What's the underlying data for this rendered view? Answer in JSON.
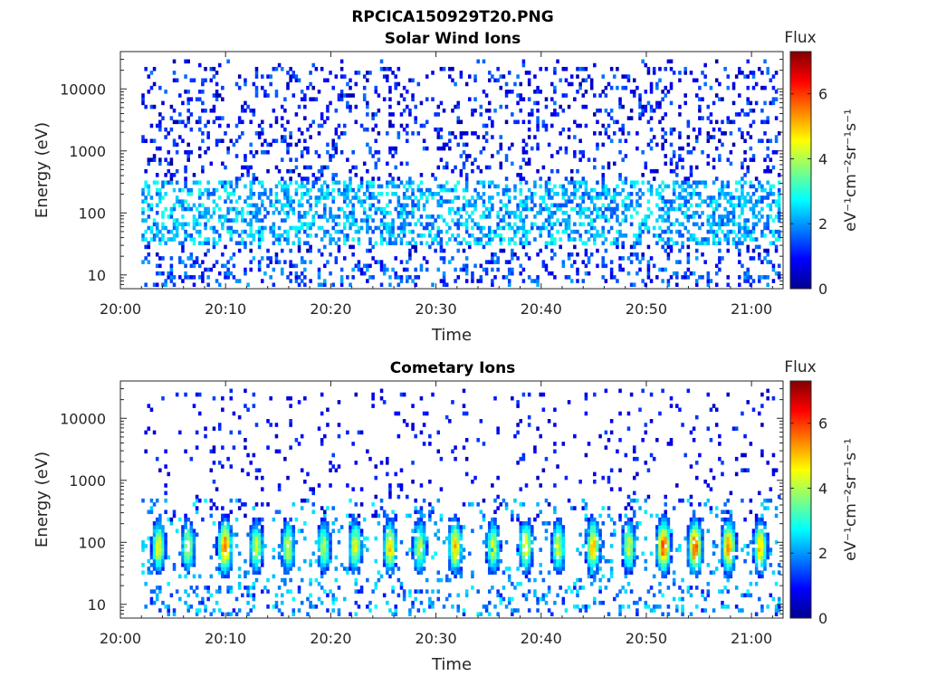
{
  "figure": {
    "title": "RPCICA150929T20.PNG"
  },
  "colorbar": {
    "label": "Flux",
    "units": "eV⁻¹cm⁻²sr⁻¹s⁻¹",
    "ticks": [
      "0",
      "2",
      "4",
      "6"
    ],
    "range": [
      0,
      7.3
    ],
    "colormap": "jet"
  },
  "chart_data": [
    {
      "type": "heatmap",
      "title": "Solar Wind Ions",
      "xlabel": "Time",
      "ylabel": "Energy (eV)",
      "x_ticks": [
        "20:00",
        "20:10",
        "20:20",
        "20:30",
        "20:40",
        "20:50",
        "21:00"
      ],
      "y_ticks": [
        "10",
        "100",
        "1000",
        "10000"
      ],
      "y_scale": "log",
      "xlim": [
        "20:00",
        "21:03"
      ],
      "ylim": [
        6,
        40000
      ],
      "data_start": "20:02",
      "description_of_pattern": "sparse low flux (0-2) scattered from 10 eV to 30000 eV, moderate flux (2-3.5) bands between 30 and 300 eV"
    },
    {
      "type": "heatmap",
      "title": "Cometary Ions",
      "xlabel": "Time",
      "ylabel": "Energy (eV)",
      "x_ticks": [
        "20:00",
        "20:10",
        "20:20",
        "20:30",
        "20:40",
        "20:50",
        "21:00"
      ],
      "y_ticks": [
        "10",
        "100",
        "1000",
        "10000"
      ],
      "y_scale": "log",
      "xlim": [
        "20:00",
        "21:03"
      ],
      "ylim": [
        6,
        40000
      ],
      "data_start": "20:02",
      "burst_times_min": [
        3.5,
        6.3,
        9.8,
        12.8,
        15.8,
        19.2,
        22.2,
        25.5,
        28.3,
        31.7,
        35.3,
        38.4,
        41.5,
        44.8,
        48.2,
        51.5,
        54.5,
        57.7,
        60.7
      ],
      "burst_peak_flux": [
        4.5,
        4.2,
        5.6,
        4.3,
        4.2,
        4.0,
        4.4,
        4.8,
        4.2,
        5.0,
        4.4,
        4.8,
        4.2,
        5.0,
        4.3,
        5.8,
        5.9,
        5.4,
        5.0
      ]
    }
  ]
}
